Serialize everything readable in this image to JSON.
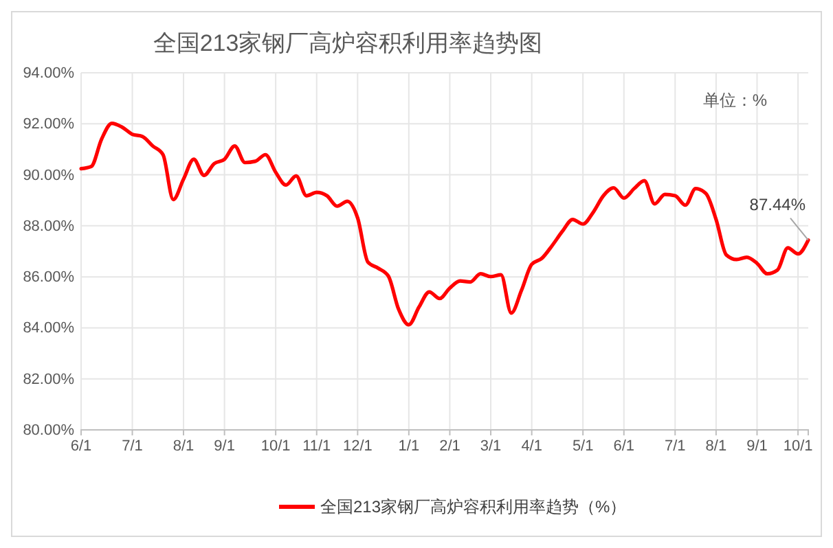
{
  "chart_data": {
    "type": "line",
    "title": "全国213家钢厂高炉容积利用率趋势图",
    "annotations": [
      "单位：%",
      "87.44%"
    ],
    "categories": [
      "6/1",
      null,
      null,
      null,
      null,
      "7/1",
      null,
      null,
      null,
      null,
      "8/1",
      null,
      null,
      null,
      "9/1",
      null,
      null,
      null,
      null,
      "10/1",
      null,
      null,
      null,
      "11/1",
      null,
      null,
      null,
      "12/1",
      null,
      null,
      null,
      null,
      "1/1",
      null,
      null,
      null,
      "2/1",
      null,
      null,
      null,
      "3/1",
      null,
      null,
      null,
      "4/1",
      null,
      null,
      null,
      null,
      "5/1",
      null,
      null,
      null,
      "6/1",
      null,
      null,
      null,
      null,
      "7/1",
      null,
      null,
      null,
      "8/1",
      null,
      null,
      null,
      "9/1",
      null,
      null,
      null,
      "10/1",
      null
    ],
    "ylim": [
      80,
      94
    ],
    "yticks": [
      {
        "value": 80,
        "label": "80.00%"
      },
      {
        "value": 82,
        "label": "82.00%"
      },
      {
        "value": 84,
        "label": "84.00%"
      },
      {
        "value": 86,
        "label": "86.00%"
      },
      {
        "value": 88,
        "label": "88.00%"
      },
      {
        "value": 90,
        "label": "90.00%"
      },
      {
        "value": 92,
        "label": "92.00%"
      },
      {
        "value": 94,
        "label": "94.00%"
      }
    ],
    "grid": true,
    "legend": "bottom",
    "series": [
      {
        "name": "全国213家钢厂高炉容积利用率趋势（%）",
        "color": "#ff0000",
        "values": [
          90.24,
          90.33,
          91.4,
          92.02,
          91.87,
          91.59,
          91.5,
          91.13,
          90.79,
          89.03,
          89.83,
          90.61,
          89.98,
          90.44,
          90.61,
          91.13,
          90.48,
          90.53,
          90.79,
          90.1,
          89.6,
          89.96,
          89.18,
          89.31,
          89.18,
          88.77,
          88.96,
          88.31,
          86.58,
          86.34,
          86.03,
          84.73,
          84.12,
          84.82,
          85.41,
          85.15,
          85.56,
          85.84,
          85.8,
          86.12,
          86.01,
          86.08,
          84.58,
          85.47,
          86.49,
          86.73,
          87.23,
          87.79,
          88.25,
          88.07,
          88.53,
          89.18,
          89.49,
          89.09,
          89.46,
          89.77,
          88.86,
          89.23,
          89.18,
          88.81,
          89.46,
          89.27,
          88.25,
          86.86,
          86.68,
          86.77,
          86.53,
          86.12,
          86.27,
          87.14,
          86.9,
          87.44
        ]
      }
    ]
  }
}
